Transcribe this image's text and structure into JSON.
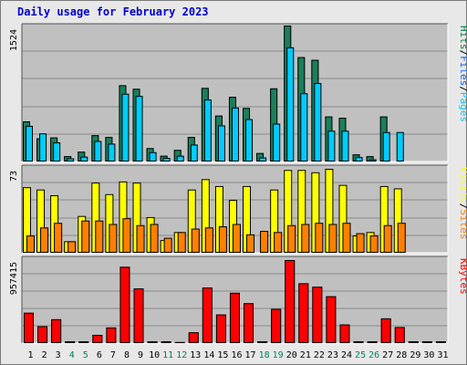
{
  "title": "Daily usage for February 2023",
  "chart_data": [
    {
      "type": "bar",
      "name": "hits-files-pages",
      "ymax_label": "1524",
      "ylim": [
        0,
        1524
      ],
      "legend": {
        "pages": "Pages",
        "sep1": "/",
        "files": "Files",
        "sep2": "/",
        "hits": "Hits",
        "colors": {
          "pages": "#00ccff",
          "files": "#0066ff",
          "hits": "#008040",
          "sep": "#000000"
        }
      },
      "series": [
        {
          "name": "Hits",
          "color": "#1a7f5a",
          "values": [
            450,
            260,
            270,
            60,
            110,
            295,
            275,
            855,
            815,
            150,
            65,
            130,
            275,
            825,
            515,
            725,
            600,
            95,
            820,
            1524,
            1170,
            1140,
            505,
            490,
            80,
            60,
            505,
            0,
            0,
            0,
            0
          ]
        },
        {
          "name": "Files",
          "color": "#00ccff",
          "values": [
            400,
            315,
            215,
            35,
            55,
            230,
            200,
            760,
            735,
            105,
            40,
            65,
            190,
            695,
            405,
            605,
            475,
            45,
            425,
            1280,
            765,
            880,
            345,
            345,
            50,
            25,
            330,
            330,
            0,
            0,
            0
          ]
        }
      ]
    },
    {
      "type": "bar",
      "name": "visits-sites",
      "ymax_label": "73",
      "ylim": [
        0,
        73
      ],
      "legend": {
        "sites": "Sites",
        "sep1": "/",
        "visits": "Visits",
        "colors": {
          "sites": "#ff8000",
          "visits": "#ffff00",
          "sep": "#000000"
        }
      },
      "series": [
        {
          "name": "Visits",
          "color": "#ffff00",
          "values": [
            57,
            55,
            50,
            10,
            32,
            61,
            51,
            62,
            61,
            31,
            11,
            18,
            55,
            64,
            58,
            46,
            58,
            0,
            55,
            72,
            72,
            70,
            73,
            59,
            15,
            18,
            58,
            56,
            0,
            0,
            0
          ]
        },
        {
          "name": "Sites",
          "color": "#ff8000",
          "values": [
            15,
            22,
            26,
            10,
            28,
            28,
            25,
            30,
            24,
            25,
            13,
            18,
            21,
            22,
            23,
            25,
            16,
            19,
            18,
            24,
            25,
            26,
            25,
            26,
            17,
            15,
            24,
            26,
            0,
            0,
            0
          ]
        }
      ]
    },
    {
      "type": "bar",
      "name": "kbytes",
      "ymax_label": "957415",
      "ylim": [
        0,
        957415
      ],
      "legend": {
        "kbytes": "KBytes",
        "colors": {
          "kbytes": "#ff0000"
        }
      },
      "series": [
        {
          "name": "KBytes",
          "color": "#ff0000",
          "values": [
            350000,
            195000,
            275000,
            0,
            0,
            95000,
            180000,
            880000,
            630000,
            0,
            0,
            12000,
            125000,
            640000,
            330000,
            580000,
            460000,
            0,
            395000,
            957415,
            690000,
            650000,
            540000,
            215000,
            0,
            0,
            285000,
            185000,
            0,
            0,
            0
          ]
        }
      ]
    }
  ],
  "days": [
    "1",
    "2",
    "3",
    "4",
    "5",
    "6",
    "7",
    "8",
    "9",
    "10",
    "11",
    "12",
    "13",
    "14",
    "15",
    "16",
    "17",
    "18",
    "19",
    "20",
    "21",
    "22",
    "23",
    "24",
    "25",
    "26",
    "27",
    "28",
    "29",
    "30",
    "31"
  ],
  "day_colors": [
    "#000000",
    "#000000",
    "#000000",
    "#00805f",
    "#00805f",
    "#000000",
    "#000000",
    "#000000",
    "#000000",
    "#000000",
    "#00805f",
    "#00805f",
    "#000000",
    "#000000",
    "#000000",
    "#000000",
    "#000000",
    "#00805f",
    "#00805f",
    "#000000",
    "#000000",
    "#000000",
    "#000000",
    "#000000",
    "#00805f",
    "#00805f",
    "#000000",
    "#000000",
    "#000000",
    "#000000",
    "#000000"
  ]
}
